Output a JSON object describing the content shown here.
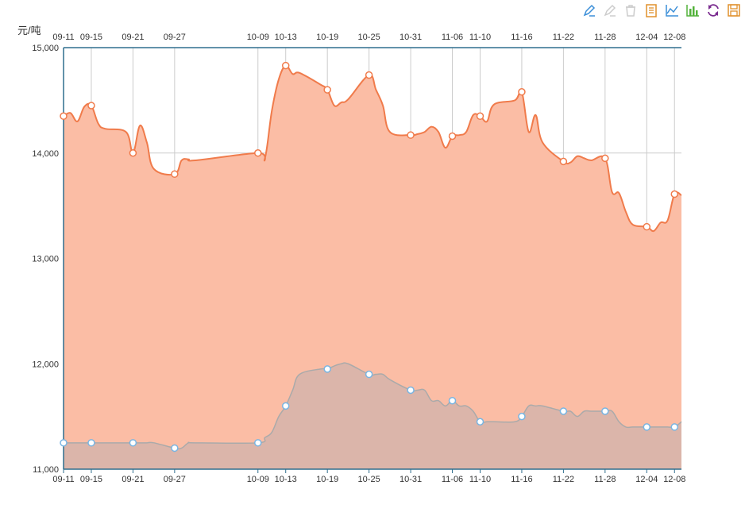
{
  "toolbox": [
    {
      "name": "mark-icon",
      "color": "#3c8fd8"
    },
    {
      "name": "mark-undo-icon",
      "color": "#cccccc"
    },
    {
      "name": "mark-clear-icon",
      "color": "#cccccc"
    },
    {
      "name": "data-view-icon",
      "color": "#e0902c"
    },
    {
      "name": "line-chart-icon",
      "color": "#3c8fd8"
    },
    {
      "name": "bar-chart-icon",
      "color": "#52b23a"
    },
    {
      "name": "restore-icon",
      "color": "#7a2b8f"
    },
    {
      "name": "save-image-icon",
      "color": "#e0902c"
    }
  ],
  "chart_data": {
    "type": "area",
    "unit": "元/吨",
    "ylim": [
      11000,
      15000
    ],
    "y_ticks": [
      11000,
      12000,
      13000,
      14000,
      15000
    ],
    "y_tick_labels": [
      "11,000",
      "12,000",
      "13,000",
      "14,000",
      "15,000"
    ],
    "x_axis_position": "top",
    "x_tick_labels": [
      "09-11",
      "09-15",
      "09-21",
      "09-27",
      "10-09",
      "10-13",
      "10-19",
      "10-25",
      "10-31",
      "11-06",
      "11-10",
      "11-16",
      "11-22",
      "11-28",
      "12-04",
      "12-08"
    ],
    "grid": true,
    "series": [
      {
        "color": "#f07b4b",
        "fill": "#fbbda5",
        "x": [
          "09-11",
          "09-12",
          "09-13",
          "09-14",
          "09-15",
          "09-16",
          "09-17",
          "09-20",
          "09-21",
          "09-22",
          "09-23",
          "09-24",
          "09-27",
          "09-28",
          "09-29",
          "09-30",
          "10-09",
          "10-10",
          "10-11",
          "10-12",
          "10-13",
          "10-14",
          "10-15",
          "10-18",
          "10-19",
          "10-20",
          "10-21",
          "10-22",
          "10-25",
          "10-26",
          "10-27",
          "10-28",
          "10-31",
          "11-01",
          "11-02",
          "11-03",
          "11-04",
          "11-05",
          "11-06",
          "11-07",
          "11-08",
          "11-09",
          "11-10",
          "11-11",
          "11-12",
          "11-15",
          "11-16",
          "11-17",
          "11-18",
          "11-19",
          "11-22",
          "11-23",
          "11-24",
          "11-25",
          "11-26",
          "11-28",
          "11-29",
          "11-30",
          "12-01",
          "12-02",
          "12-04",
          "12-05",
          "12-06",
          "12-07",
          "12-08",
          "12-09"
        ],
        "y": [
          14350,
          14380,
          14300,
          14440,
          14450,
          14280,
          14230,
          14200,
          14000,
          14260,
          14100,
          13850,
          13800,
          13930,
          13940,
          13930,
          14000,
          13950,
          14400,
          14700,
          14830,
          14750,
          14760,
          14650,
          14600,
          14450,
          14480,
          14510,
          14740,
          14600,
          14450,
          14200,
          14170,
          14180,
          14200,
          14250,
          14200,
          14050,
          14160,
          14170,
          14200,
          14360,
          14350,
          14300,
          14460,
          14500,
          14580,
          14200,
          14360,
          14100,
          13920,
          13910,
          13970,
          13950,
          13930,
          13950,
          13630,
          13620,
          13440,
          13320,
          13300,
          13260,
          13340,
          13360,
          13610,
          13600
        ],
        "marked_points": [
          "09-11",
          "09-15",
          "09-21",
          "09-27",
          "10-09",
          "10-13",
          "10-19",
          "10-25",
          "10-31",
          "11-06",
          "11-10",
          "11-16",
          "11-22",
          "11-28",
          "12-04",
          "12-08"
        ]
      },
      {
        "color": "#aaaaaa",
        "fill": "#d9b4aa",
        "marker_color": "#79b5e2",
        "x": [
          "09-11",
          "09-12",
          "09-13",
          "09-14",
          "09-15",
          "09-16",
          "09-17",
          "09-20",
          "09-21",
          "09-22",
          "09-23",
          "09-24",
          "09-27",
          "09-28",
          "09-29",
          "09-30",
          "10-09",
          "10-10",
          "10-11",
          "10-12",
          "10-13",
          "10-14",
          "10-15",
          "10-18",
          "10-19",
          "10-20",
          "10-21",
          "10-22",
          "10-25",
          "10-26",
          "10-27",
          "10-28",
          "10-31",
          "11-01",
          "11-02",
          "11-03",
          "11-04",
          "11-05",
          "11-06",
          "11-07",
          "11-08",
          "11-09",
          "11-10",
          "11-11",
          "11-12",
          "11-15",
          "11-16",
          "11-17",
          "11-18",
          "11-19",
          "11-22",
          "11-23",
          "11-24",
          "11-25",
          "11-26",
          "11-28",
          "11-29",
          "11-30",
          "12-01",
          "12-02",
          "12-04",
          "12-05",
          "12-06",
          "12-07",
          "12-08",
          "12-09"
        ],
        "y": [
          11250,
          11250,
          11250,
          11250,
          11250,
          11250,
          11250,
          11250,
          11250,
          11250,
          11250,
          11250,
          11200,
          11200,
          11250,
          11250,
          11250,
          11300,
          11350,
          11500,
          11600,
          11750,
          11900,
          11950,
          11950,
          11980,
          12000,
          12000,
          11900,
          11900,
          11900,
          11850,
          11750,
          11750,
          11750,
          11650,
          11650,
          11600,
          11650,
          11600,
          11600,
          11550,
          11450,
          11450,
          11450,
          11450,
          11500,
          11600,
          11600,
          11600,
          11550,
          11550,
          11500,
          11550,
          11550,
          11550,
          11550,
          11450,
          11400,
          11400,
          11400,
          11400,
          11400,
          11400,
          11400,
          11450
        ],
        "marked_points": [
          "09-11",
          "09-15",
          "09-21",
          "09-27",
          "10-09",
          "10-13",
          "10-19",
          "10-25",
          "10-31",
          "11-06",
          "11-10",
          "11-16",
          "11-22",
          "11-28",
          "12-04",
          "12-08"
        ]
      }
    ]
  }
}
